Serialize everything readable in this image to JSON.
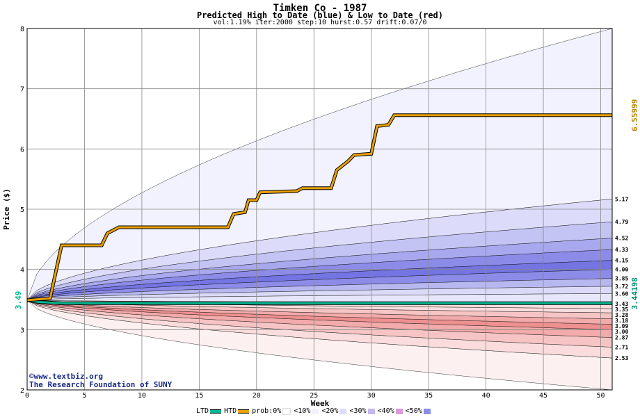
{
  "chart_data": {
    "type": "area",
    "title": "Timken Co - 1987",
    "subtitle": "Predicted High to Date (blue) &  Low to Date (red)",
    "params": "vol:1.19% iter:2000 step:10 hurst:0.57 drift:0.07/0",
    "xlabel": "Week",
    "ylabel": "Price ($)",
    "xlim": [
      0,
      51
    ],
    "ylim": [
      2,
      8
    ],
    "xticks": [
      0,
      5,
      10,
      15,
      20,
      25,
      30,
      35,
      40,
      45,
      50
    ],
    "yticks": [
      2,
      3,
      4,
      5,
      6,
      7,
      8
    ],
    "grid": true,
    "start_price": "3.49",
    "htd_final": "6.55999",
    "ltd_final": "3.44198",
    "right_labels": [
      "5.17",
      "4.79",
      "4.52",
      "4.33",
      "4.15",
      "4.00",
      "3.85",
      "3.72",
      "3.60",
      "3.43",
      "3.35",
      "3.28",
      "3.18",
      "3.09",
      "3.00",
      "2.87",
      "2.71",
      "2.53"
    ],
    "upper_band_endpoints": [
      8.0,
      5.17,
      4.79,
      4.52,
      4.33,
      4.15,
      4.0,
      3.85,
      3.72,
      3.6
    ],
    "lower_band_endpoints": [
      2.0,
      2.53,
      2.71,
      2.87,
      3.0,
      3.09,
      3.18,
      3.28,
      3.35
    ],
    "htd_series": [
      [
        0,
        3.49
      ],
      [
        2,
        3.52
      ],
      [
        3,
        4.4
      ],
      [
        6.5,
        4.4
      ],
      [
        7,
        4.6
      ],
      [
        8,
        4.7
      ],
      [
        17.5,
        4.7
      ],
      [
        18,
        4.92
      ],
      [
        19,
        4.95
      ],
      [
        19.3,
        5.15
      ],
      [
        20,
        5.15
      ],
      [
        20.3,
        5.28
      ],
      [
        23.5,
        5.3
      ],
      [
        24,
        5.35
      ],
      [
        26.5,
        5.35
      ],
      [
        27,
        5.65
      ],
      [
        28,
        5.8
      ],
      [
        28.5,
        5.9
      ],
      [
        30,
        5.92
      ],
      [
        30.5,
        6.38
      ],
      [
        31.5,
        6.4
      ],
      [
        32,
        6.56
      ],
      [
        51,
        6.56
      ]
    ],
    "ltd_series": [
      [
        0,
        3.49
      ],
      [
        1,
        3.46
      ],
      [
        3,
        3.44
      ],
      [
        51,
        3.44
      ]
    ]
  },
  "credit": {
    "line1": "©www.textbiz.org",
    "line2": "The Research Foundation of SUNY"
  },
  "legend": {
    "ltd": "LTD",
    "htd": "HTD",
    "prob": "prob:0%",
    "items": [
      "<10%",
      "<20%",
      "<30%",
      "<40%",
      "<50%"
    ]
  },
  "colors": {
    "htd": "#e8a000",
    "ltd": "#00b890",
    "blue_bands": [
      "#f2f2ff",
      "#dcdcfa",
      "#c4c4f4",
      "#a8a8ee",
      "#8c8ce8",
      "#7474e2",
      "#8c8ce8",
      "#b8b8f0",
      "#dadaf8"
    ],
    "red_bands": [
      "#fdf0f0",
      "#fadcdc",
      "#f6c4c4",
      "#f2aaaa",
      "#ee9090",
      "#f2aaaa",
      "#f6c4c4",
      "#fadcdc"
    ],
    "right_label_gold": "#b8860b",
    "right_label_green": "#009070"
  }
}
